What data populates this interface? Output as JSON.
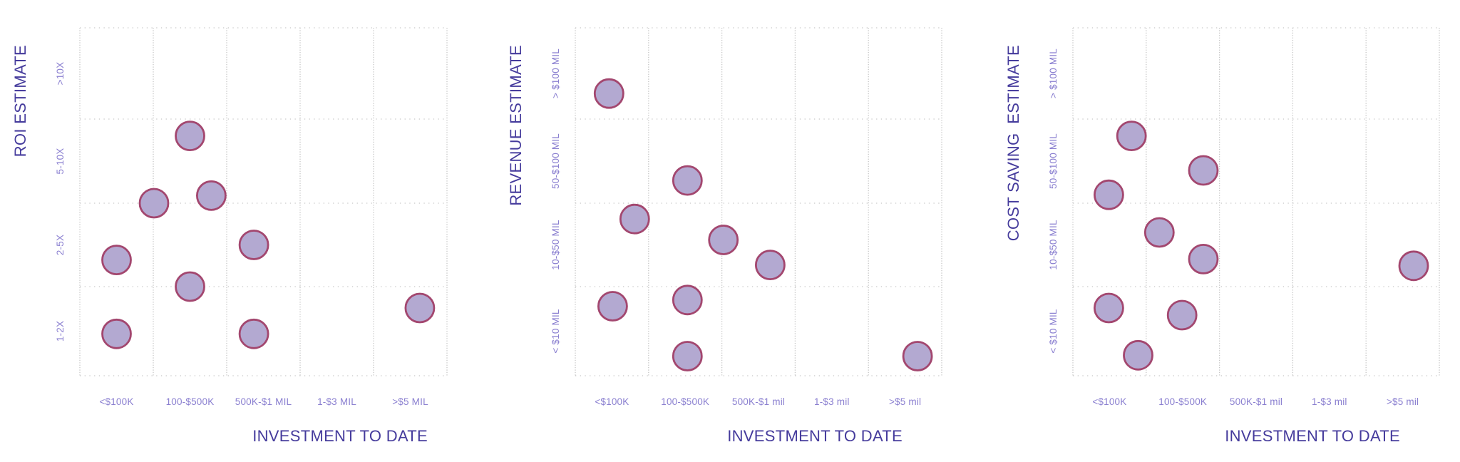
{
  "page": {
    "background_color": "#ffffff",
    "description": "Three category scatter plots of project estimates versus investment to date"
  },
  "style": {
    "point_fill_color": "#b3a9d1",
    "point_stroke_color": "#a3476f",
    "grid_dot_color": "#c6c6c6",
    "axis_title_color": "#453b9c",
    "tick_label_color": "#8a7fd0"
  },
  "chart_data": [
    {
      "type": "scatter",
      "id": "roi-estimate",
      "y_axis_title": "ROI ESTIMATE",
      "x_axis_title": "INVESTMENT TO DATE",
      "x_categories": [
        "<$100K",
        "100-$500K",
        "500K-$1 MIL",
        "1-$3 MIL",
        ">$5 MIL"
      ],
      "y_categories": [
        "1-2X",
        "2-5X",
        "5-10X",
        ">10X"
      ],
      "grid": "dotted",
      "legend": "none",
      "units_note": "point x in column units (0=left edge, 1 unit per column, 5 columns); point y in row units (0=bottom edge, 1 unit per row, 4 rows, bottom-to-top matching y_categories order)",
      "points": [
        {
          "x": 1.5,
          "y": 2.8
        },
        {
          "x": 1.01,
          "y": 2.0
        },
        {
          "x": 1.79,
          "y": 2.09
        },
        {
          "x": 2.37,
          "y": 1.5
        },
        {
          "x": 0.5,
          "y": 1.32
        },
        {
          "x": 1.5,
          "y": 1.0
        },
        {
          "x": 0.5,
          "y": 0.47
        },
        {
          "x": 2.37,
          "y": 0.47
        },
        {
          "x": 4.63,
          "y": 0.76
        }
      ]
    },
    {
      "type": "scatter",
      "id": "revenue-estimate",
      "y_axis_title": "REVENUE ESTIMATE",
      "x_axis_title": "INVESTMENT TO DATE",
      "x_categories": [
        "<$100K",
        "100-$500K",
        "500K-$1 mil",
        "1-$3 mil",
        ">$5 mil"
      ],
      "y_categories": [
        "< $10 MIL",
        "10-$50 MIL",
        "50-$100 MIL",
        "> $100 MIL"
      ],
      "grid": "dotted",
      "legend": "none",
      "units_note": "point x in column units (0=left edge, 1 unit per column, 5 columns); point y in row units (0=bottom edge, 1 unit per row, 4 rows, bottom-to-top matching y_categories order)",
      "points": [
        {
          "x": 0.46,
          "y": 3.28
        },
        {
          "x": 1.53,
          "y": 2.27
        },
        {
          "x": 0.81,
          "y": 1.81
        },
        {
          "x": 2.02,
          "y": 1.56
        },
        {
          "x": 2.66,
          "y": 1.26
        },
        {
          "x": 0.51,
          "y": 0.78
        },
        {
          "x": 1.53,
          "y": 0.85
        },
        {
          "x": 1.53,
          "y": 0.22
        },
        {
          "x": 4.67,
          "y": 0.22
        }
      ]
    },
    {
      "type": "scatter",
      "id": "cost-saving-estimate",
      "y_axis_title": "COST SAVING  ESTIMATE",
      "x_axis_title": "INVESTMENT TO DATE",
      "x_categories": [
        "<$100K",
        "100-$500K",
        "500K-$1 mil",
        "1-$3 mil",
        ">$5 mil"
      ],
      "y_categories": [
        "< $10 MIL",
        "10-$50 MIL",
        "50-$100 MIL",
        "> $100 MIL"
      ],
      "grid": "dotted",
      "legend": "none",
      "units_note": "point x in column units (0=left edge, 1 unit per column, 5 columns); point y in row units (0=bottom edge, 1 unit per row, 4 rows, bottom-to-top matching y_categories order)",
      "points": [
        {
          "x": 0.8,
          "y": 2.8
        },
        {
          "x": 1.78,
          "y": 2.39
        },
        {
          "x": 0.49,
          "y": 2.1
        },
        {
          "x": 1.18,
          "y": 1.65
        },
        {
          "x": 1.78,
          "y": 1.33
        },
        {
          "x": 4.65,
          "y": 1.25
        },
        {
          "x": 0.49,
          "y": 0.76
        },
        {
          "x": 1.49,
          "y": 0.68
        },
        {
          "x": 0.89,
          "y": 0.23
        }
      ]
    }
  ]
}
